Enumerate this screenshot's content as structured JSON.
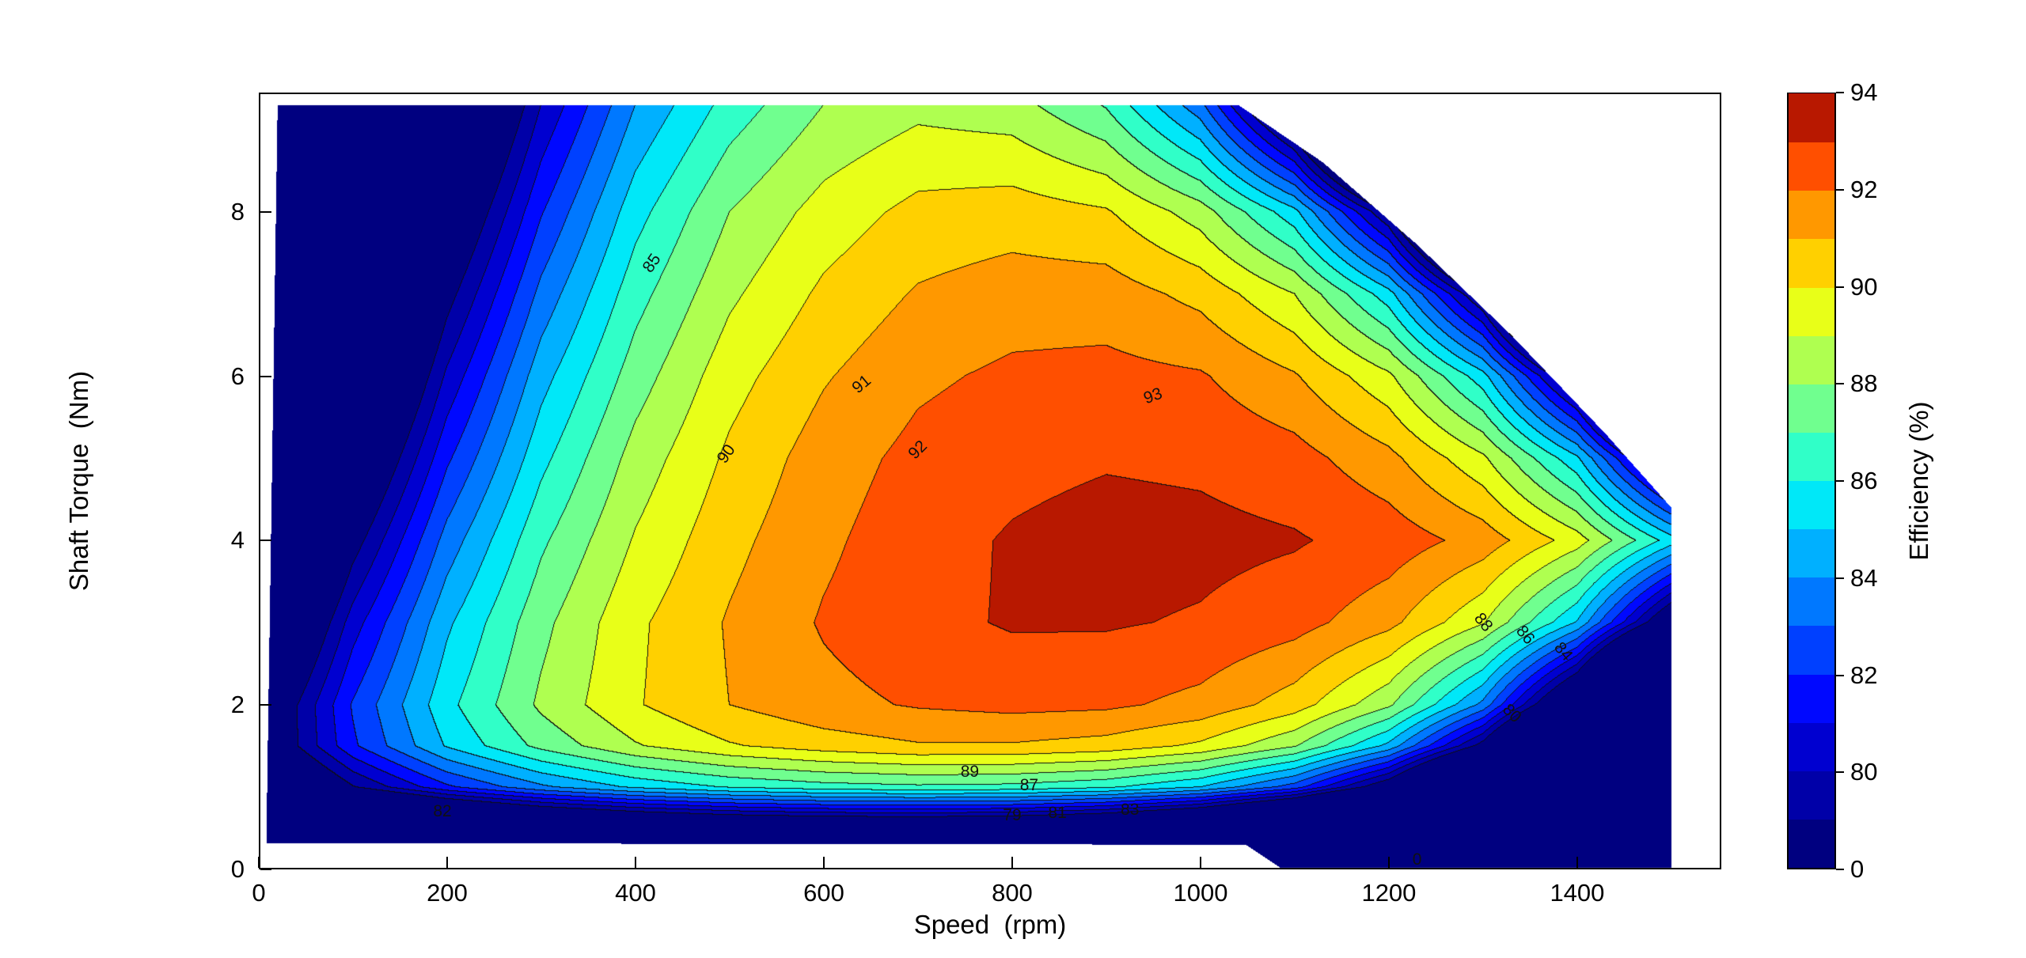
{
  "chart_data": {
    "type": "heatmap",
    "subtype": "filled_contour_efficiency_map",
    "title": "",
    "xlabel": "Speed  (rpm)",
    "ylabel": "Shaft Torque  (Nm)",
    "colorbar_label": "Efficiency (%)",
    "xlim": [
      0,
      1553
    ],
    "ylim": [
      0,
      9.45
    ],
    "x_ticks": [
      0,
      200,
      400,
      600,
      800,
      1000,
      1200,
      1400
    ],
    "y_ticks": [
      0,
      2,
      4,
      6,
      8
    ],
    "level_min": 78,
    "level_max": 94,
    "contour_levels": [
      79,
      80,
      81,
      82,
      83,
      84,
      85,
      86,
      87,
      88,
      89,
      90,
      91,
      92,
      93
    ],
    "colors": [
      "#000080",
      "#0000A8",
      "#0000D0",
      "#0008FF",
      "#0040FF",
      "#0078FF",
      "#00B0FF",
      "#00E8F8",
      "#30FFC8",
      "#70FF8F",
      "#AFFF50",
      "#E8FF18",
      "#FFD000",
      "#FF9800",
      "#FF4F00",
      "#B81800"
    ],
    "colorbar_ticks": [
      {
        "label": "0",
        "value": 0
      },
      {
        "label": "80",
        "value": 80
      },
      {
        "label": "82",
        "value": 82
      },
      {
        "label": "84",
        "value": 84
      },
      {
        "label": "86",
        "value": 86
      },
      {
        "label": "88",
        "value": 88
      },
      {
        "label": "90",
        "value": 90
      },
      {
        "label": "92",
        "value": 92
      },
      {
        "label": "94",
        "value": 94
      }
    ],
    "x": [
      0,
      100,
      200,
      300,
      400,
      500,
      600,
      700,
      800,
      900,
      1000,
      1100,
      1200,
      1300,
      1400,
      1500
    ],
    "y": [
      0.3,
      0.6,
      1.0,
      1.5,
      2.0,
      3.0,
      4.0,
      5.0,
      6.0,
      7.0,
      8.0,
      9.3
    ],
    "values": [
      [
        54.5,
        58.1,
        60.6,
        62.2,
        63.3,
        64.0,
        64.4,
        64.4,
        64.0,
        63.0,
        60.9,
        56.8,
        49.0,
        40.0,
        40.0,
        40.0
      ],
      [
        67.3,
        71.2,
        73.9,
        75.7,
        76.9,
        77.7,
        78.1,
        78.2,
        78.0,
        77.2,
        75.5,
        72.2,
        65.9,
        54.0,
        40.0,
        40.0
      ],
      [
        74.6,
        78.9,
        81.8,
        83.8,
        85.2,
        86.1,
        86.6,
        86.8,
        86.7,
        86.2,
        85.0,
        82.5,
        77.7,
        68.7,
        51.8,
        40.0
      ],
      [
        77.0,
        81.8,
        85.1,
        87.3,
        88.9,
        89.9,
        90.5,
        90.9,
        90.9,
        90.6,
        89.8,
        88.1,
        84.7,
        78.4,
        66.4,
        44.0
      ],
      [
        76.8,
        82.1,
        85.7,
        88.2,
        89.9,
        91.0,
        91.7,
        92.1,
        92.3,
        92.2,
        91.7,
        90.5,
        88.2,
        83.7,
        75.2,
        59.3
      ],
      [
        74.2,
        80.5,
        84.8,
        87.7,
        89.8,
        91.1,
        92.1,
        92.7,
        93.1,
        93.1,
        92.9,
        92.4,
        91.3,
        89.1,
        84.9,
        76.9
      ],
      [
        71.1,
        78.4,
        83.4,
        86.8,
        89.1,
        90.7,
        91.8,
        92.6,
        93.1,
        93.4,
        93.3,
        93.1,
        92.6,
        91.6,
        89.5,
        85.5
      ],
      [
        67.9,
        76.2,
        81.8,
        85.7,
        88.4,
        90.2,
        91.5,
        92.3,
        92.7,
        92.9,
        92.8,
        92.4,
        91.3,
        89.2,
        85.2,
        77.6
      ],
      [
        64.6,
        73.9,
        80.2,
        84.6,
        87.5,
        89.6,
        90.9,
        91.8,
        92.2,
        92.3,
        92.1,
        91.1,
        89.2,
        85.4,
        78.1,
        64.5
      ],
      [
        61.2,
        71.5,
        78.5,
        83.3,
        86.6,
        88.8,
        90.2,
        91.1,
        91.5,
        91.5,
        90.7,
        89.0,
        85.4,
        78.6,
        65.7,
        41.4
      ],
      [
        57.7,
        69.0,
        76.7,
        81.9,
        85.6,
        88.0,
        89.4,
        90.3,
        90.5,
        90.1,
        88.5,
        85.3,
        78.8,
        66.6,
        43.5,
        40.0
      ],
      [
        53.0,
        65.5,
        74.1,
        80.0,
        84.0,
        86.4,
        88.0,
        88.7,
        88.4,
        86.9,
        83.3,
        76.1,
        62.3,
        40.0,
        40.0,
        40.0
      ]
    ],
    "domain_polygon": [
      [
        8,
        0.32
      ],
      [
        20,
        9.3
      ],
      [
        1040,
        9.3
      ],
      [
        1130,
        8.6
      ],
      [
        1230,
        7.6
      ],
      [
        1330,
        6.5
      ],
      [
        1430,
        5.3
      ],
      [
        1500,
        4.4
      ],
      [
        1500,
        0.02
      ],
      [
        1085,
        0.02
      ],
      [
        1048,
        0.3
      ]
    ],
    "contour_labels": [
      {
        "text": "85",
        "s": 418,
        "t": 7.37,
        "rot": -55
      },
      {
        "text": "90",
        "s": 497,
        "t": 5.05,
        "rot": -55
      },
      {
        "text": "91",
        "s": 640,
        "t": 5.9,
        "rot": -40
      },
      {
        "text": "92",
        "s": 700,
        "t": 5.1,
        "rot": -45
      },
      {
        "text": "93",
        "s": 950,
        "t": 5.75,
        "rot": -20
      },
      {
        "text": "89",
        "s": 755,
        "t": 1.18,
        "rot": 0
      },
      {
        "text": "87",
        "s": 818,
        "t": 1.02,
        "rot": 0
      },
      {
        "text": "79",
        "s": 800,
        "t": 0.65,
        "rot": 0
      },
      {
        "text": "81",
        "s": 848,
        "t": 0.68,
        "rot": 0
      },
      {
        "text": "83",
        "s": 925,
        "t": 0.72,
        "rot": 0
      },
      {
        "text": "82",
        "s": 195,
        "t": 0.7,
        "rot": 0
      },
      {
        "text": "88",
        "s": 1300,
        "t": 3.0,
        "rot": 50
      },
      {
        "text": "86",
        "s": 1345,
        "t": 2.85,
        "rot": 50
      },
      {
        "text": "84",
        "s": 1385,
        "t": 2.65,
        "rot": 50
      },
      {
        "text": "80",
        "s": 1330,
        "t": 1.9,
        "rot": 45
      },
      {
        "text": "0",
        "s": 1230,
        "t": 0.12,
        "rot": 0
      }
    ]
  }
}
